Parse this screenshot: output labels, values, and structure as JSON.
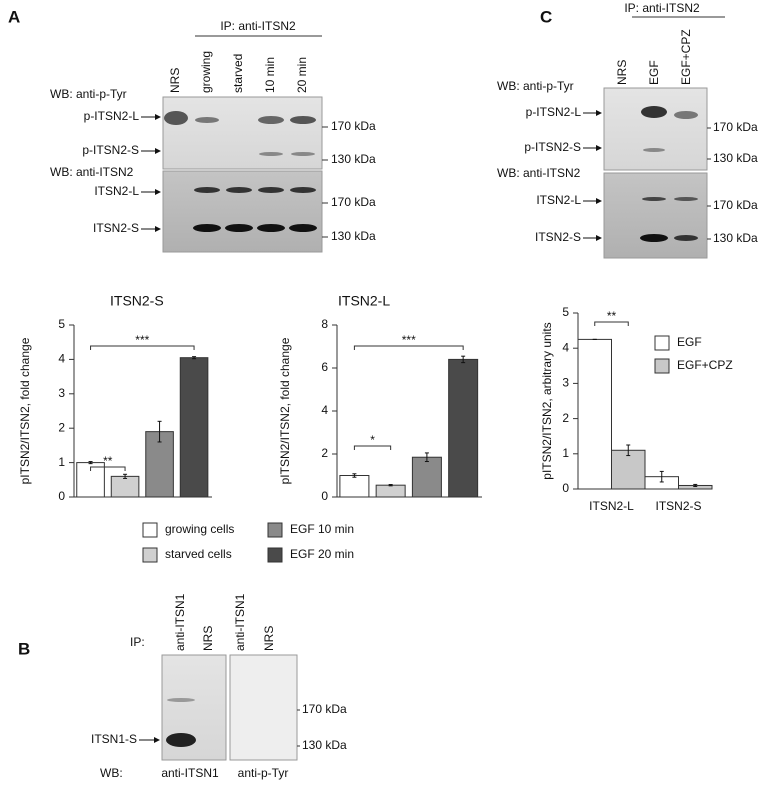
{
  "panel_labels": [
    "A",
    "B",
    "C"
  ],
  "blot_a": {
    "ip": "IP: anti-ITSN2",
    "lanes": [
      "NRS",
      "growing",
      "starved",
      "10 min",
      "20 min"
    ],
    "wb1": "WB: anti-p-Tyr",
    "bands1": [
      "p-ITSN2-L",
      "p-ITSN2-S"
    ],
    "markers1": [
      "170 kDa",
      "130 kDa"
    ],
    "wb2": "WB: anti-ITSN2",
    "bands2": [
      "ITSN2-L",
      "ITSN2-S"
    ],
    "markers2": [
      "170 kDa",
      "130 kDa"
    ]
  },
  "blot_b": {
    "ip": "IP:",
    "lanes1": [
      "anti-ITSN1",
      "NRS"
    ],
    "lanes2": [
      "anti-ITSN1",
      "NRS"
    ],
    "band": "ITSN1-S",
    "markers": [
      "170 kDa",
      "130 kDa"
    ],
    "wb": "WB:",
    "wb1": "anti-ITSN1",
    "wb2": "anti-p-Tyr"
  },
  "blot_c": {
    "ip": "IP: anti-ITSN2",
    "lanes": [
      "NRS",
      "EGF",
      "EGF+CPZ"
    ],
    "wb1": "WB: anti-p-Tyr",
    "bands1": [
      "p-ITSN2-L",
      "p-ITSN2-S"
    ],
    "markers1": [
      "170 kDa",
      "130 kDa"
    ],
    "wb2": "WB: anti-ITSN2",
    "bands2": [
      "ITSN2-L",
      "ITSN2-S"
    ],
    "markers2": [
      "170 kDa",
      "130 kDa"
    ]
  },
  "chart_data": [
    {
      "type": "bar",
      "title": "ITSN2-S",
      "y_label": "pITSN2/ITSN2, fold change",
      "series": [
        {
          "name": "growing cells",
          "color": "#ffffff",
          "values": [
            1.0
          ],
          "errors": [
            0.03
          ]
        },
        {
          "name": "starved cells",
          "color": "#d0d0d0",
          "values": [
            0.6
          ],
          "errors": [
            0.06
          ]
        },
        {
          "name": "EGF 10 min",
          "color": "#8a8a8a",
          "values": [
            1.9
          ],
          "errors": [
            0.3
          ]
        },
        {
          "name": "EGF 20 min",
          "color": "#4a4a4a",
          "values": [
            4.05
          ],
          "errors": [
            0.03
          ]
        }
      ],
      "ylim": [
        0,
        5
      ],
      "yticks": [
        0,
        1,
        2,
        3,
        4,
        5
      ],
      "annotations": [
        "**",
        "***"
      ]
    },
    {
      "type": "bar",
      "title": "ITSN2-L",
      "y_label": "pITSN2/ITSN2, fold change",
      "series": [
        {
          "color": "#ffffff",
          "values": [
            1.0
          ],
          "errors": [
            0.08
          ]
        },
        {
          "color": "#d0d0d0",
          "values": [
            0.55
          ],
          "errors": [
            0.03
          ]
        },
        {
          "color": "#8a8a8a",
          "values": [
            1.85
          ],
          "errors": [
            0.2
          ]
        },
        {
          "color": "#4a4a4a",
          "values": [
            6.4
          ],
          "errors": [
            0.15
          ]
        }
      ],
      "ylim": [
        0,
        8
      ],
      "yticks": [
        0,
        2,
        4,
        6,
        8
      ],
      "annotations": [
        "*",
        "***"
      ]
    },
    {
      "type": "bar",
      "y_label": "pITSN2/ITSN2, arbitrary units",
      "categories": [
        "ITSN2-L",
        "ITSN2-S"
      ],
      "series": [
        {
          "name": "EGF",
          "color": "#ffffff",
          "values": [
            4.25,
            0.35
          ],
          "errors": [
            0,
            0.15
          ]
        },
        {
          "name": "EGF+CPZ",
          "color": "#c8c8c8",
          "values": [
            1.1,
            0.1
          ],
          "errors": [
            0.15,
            0.03
          ]
        }
      ],
      "ylim": [
        0,
        5
      ],
      "yticks": [
        0,
        1,
        2,
        3,
        4,
        5
      ],
      "annotations": [
        "**"
      ]
    }
  ]
}
